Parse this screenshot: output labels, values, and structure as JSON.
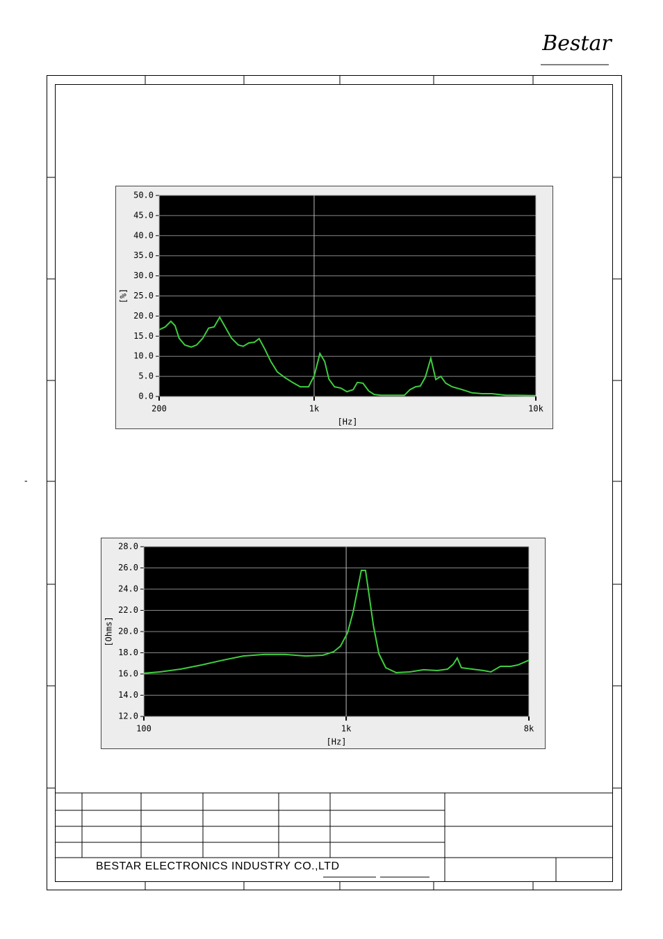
{
  "logo": "Bestar",
  "margin_mark": "-",
  "company": "BESTAR ELECTRONICS INDUSTRY CO.,LTD",
  "chart_data": [
    {
      "type": "line",
      "y_label": "[%]",
      "x_label": "[Hz]",
      "log_x": true,
      "grid": true,
      "xlim": [
        200,
        10000
      ],
      "xticks": [
        200,
        {
          "value": 1000,
          "label": "1k"
        },
        {
          "value": 10000,
          "label": "10k"
        }
      ],
      "ylim": [
        0,
        50
      ],
      "yticks": [
        {
          "value": 0,
          "label": "0.0"
        },
        {
          "value": 5,
          "label": "5.0"
        },
        {
          "value": 10,
          "label": "10.0"
        },
        {
          "value": 15,
          "label": "15.0"
        },
        {
          "value": 20,
          "label": "20.0"
        },
        {
          "value": 25,
          "label": "25.0"
        },
        {
          "value": 30,
          "label": "30.0"
        },
        {
          "value": 35,
          "label": "35.0"
        },
        {
          "value": 40,
          "label": "40.0"
        },
        {
          "value": 45,
          "label": "45.0"
        },
        {
          "value": 50,
          "label": "50.0"
        }
      ],
      "x": [
        200,
        213,
        226,
        236,
        246,
        261,
        279,
        295,
        315,
        334,
        354,
        375,
        397,
        424,
        455,
        479,
        507,
        538,
        565,
        599,
        638,
        682,
        738,
        799,
        866,
        944,
        1002,
        1062,
        1116,
        1166,
        1236,
        1319,
        1406,
        1500,
        1567,
        1660,
        1761,
        1865,
        2001,
        2262,
        2555,
        2705,
        2866,
        3015,
        3173,
        3360,
        3539,
        3727,
        3925,
        4197,
        4655,
        5160,
        5721,
        6342,
        7310,
        8110,
        10000
      ],
      "series": [
        {
          "color": "#3ecf3e",
          "values": [
            16.6,
            17.3,
            18.7,
            17.6,
            14.5,
            12.8,
            12.3,
            12.8,
            14.5,
            17.0,
            17.3,
            19.7,
            17.3,
            14.5,
            12.8,
            12.5,
            13.3,
            13.5,
            14.4,
            11.8,
            8.7,
            6.1,
            4.7,
            3.5,
            2.4,
            2.4,
            5.2,
            10.7,
            8.7,
            4.3,
            2.4,
            2.1,
            1.2,
            1.7,
            3.5,
            3.3,
            1.4,
            0.5,
            0.3,
            0.3,
            0.3,
            1.7,
            2.4,
            2.6,
            4.8,
            9.5,
            4.2,
            5.0,
            3.3,
            2.4,
            1.7,
            0.9,
            0.7,
            0.7,
            0.3,
            0.3,
            0.2
          ]
        }
      ]
    },
    {
      "type": "line",
      "y_label": "[Ohms]",
      "x_label": "[Hz]",
      "log_x": true,
      "grid": true,
      "xlim": [
        100,
        8000
      ],
      "xticks": [
        100,
        {
          "value": 1000,
          "label": "1k"
        },
        {
          "value": 8000,
          "label": "8k"
        }
      ],
      "ylim": [
        12,
        28
      ],
      "yticks": [
        {
          "value": 12,
          "label": "12.0"
        },
        {
          "value": 14,
          "label": "14.0"
        },
        {
          "value": 16,
          "label": "16.0"
        },
        {
          "value": 18,
          "label": "18.0"
        },
        {
          "value": 20,
          "label": "20.0"
        },
        {
          "value": 22,
          "label": "22.0"
        },
        {
          "value": 24,
          "label": "24.0"
        },
        {
          "value": 26,
          "label": "26.0"
        },
        {
          "value": 28,
          "label": "28.0"
        }
      ],
      "x": [
        100,
        120,
        152,
        193,
        245,
        310,
        393,
        499,
        632,
        769,
        867,
        937,
        1015,
        1082,
        1143,
        1188,
        1246,
        1290,
        1364,
        1451,
        1570,
        1766,
        2064,
        2412,
        2820,
        3170,
        3380,
        3540,
        3710,
        4200,
        4760,
        5190,
        5790,
        6510,
        7060,
        8000
      ],
      "series": [
        {
          "color": "#3ecf3e",
          "values": [
            16.07,
            16.2,
            16.46,
            16.85,
            17.3,
            17.7,
            17.84,
            17.84,
            17.7,
            17.77,
            18.1,
            18.62,
            19.87,
            21.84,
            24.13,
            25.77,
            25.77,
            23.8,
            20.52,
            17.9,
            16.59,
            16.13,
            16.2,
            16.4,
            16.33,
            16.46,
            16.92,
            17.51,
            16.59,
            16.46,
            16.33,
            16.2,
            16.72,
            16.72,
            16.85,
            17.3
          ]
        }
      ]
    }
  ]
}
